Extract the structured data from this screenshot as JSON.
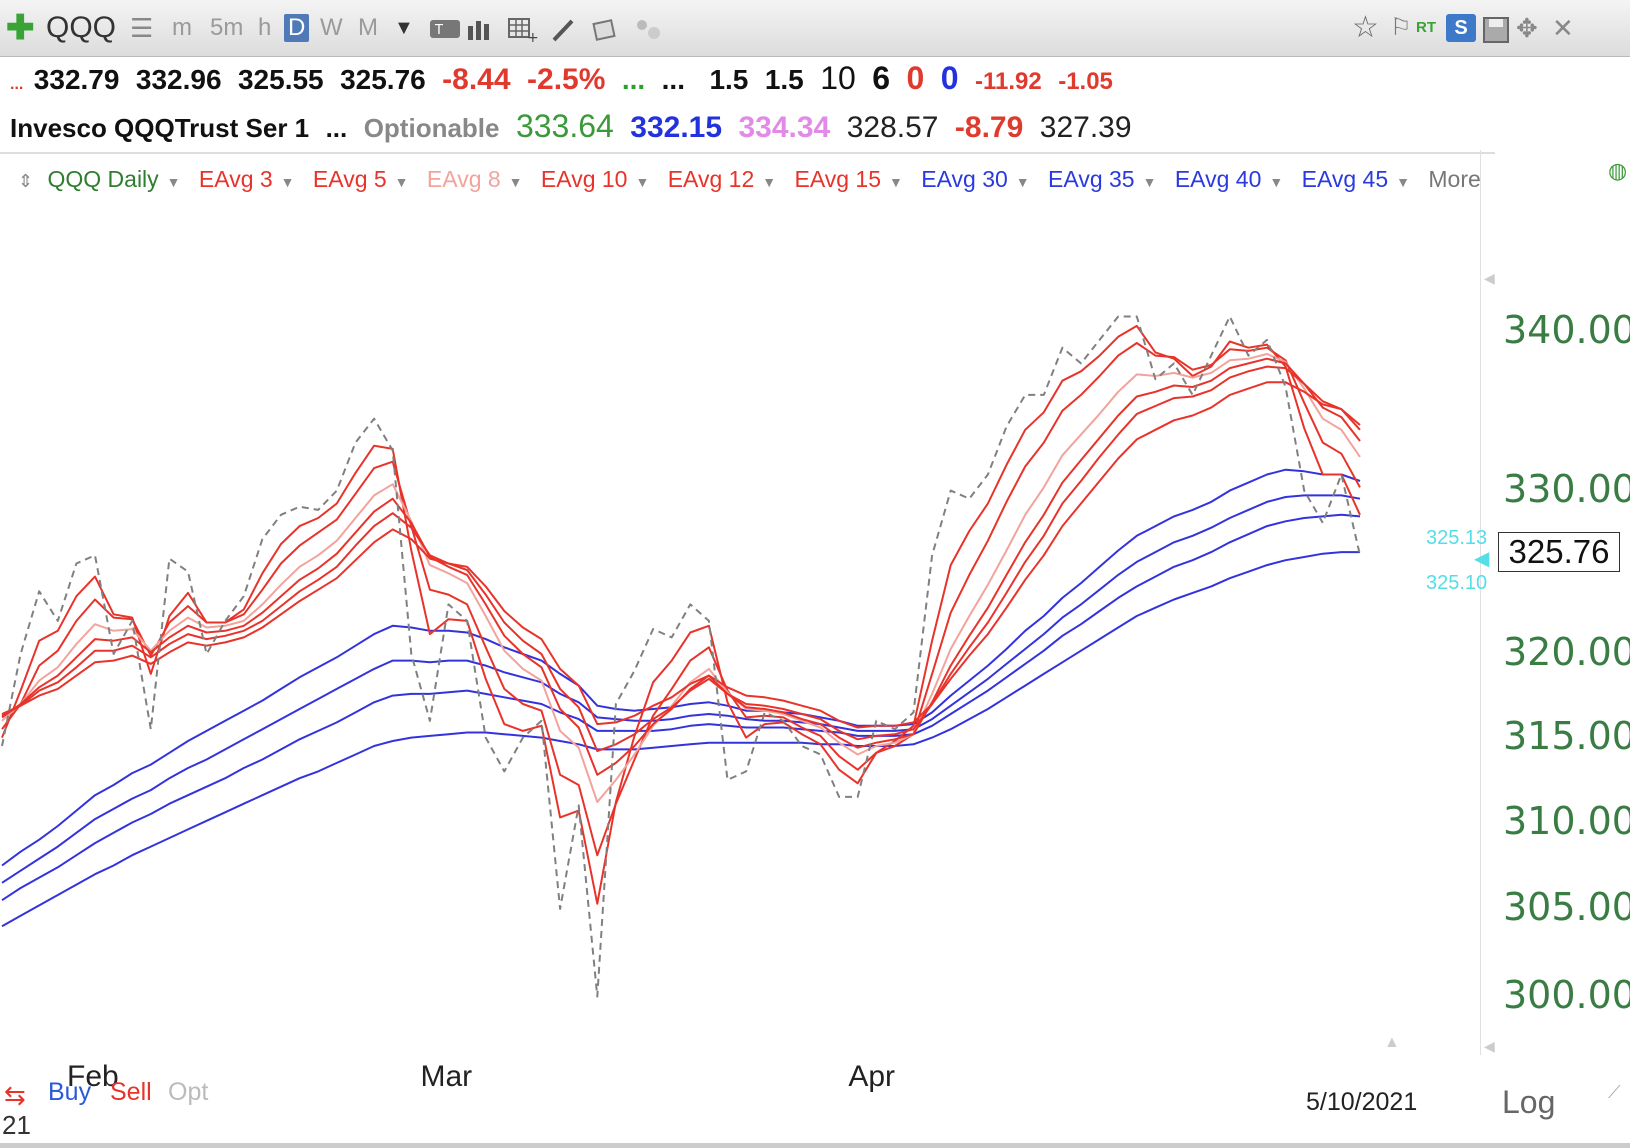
{
  "toolbar": {
    "symbol": "QQQ",
    "timeframes": [
      "m",
      "5m",
      "h",
      "D",
      "W",
      "M"
    ],
    "active_timeframe": "D",
    "right_labels": [
      "RT",
      "S"
    ]
  },
  "quote": {
    "open": "332.79",
    "high": "332.96",
    "low": "325.55",
    "close": "325.76",
    "change": "-8.44",
    "change_pct": "-2.5%",
    "dots1": "...",
    "dots2": "...",
    "dots3": "...",
    "v1": "1.5",
    "v2": "1.5",
    "v3": "10",
    "v4": "6",
    "v5": "0",
    "v6": "0",
    "v7": "-11.92",
    "v8": "-1.05"
  },
  "info": {
    "name": "Invesco QQQTrust Ser 1",
    "dots": "...",
    "optionable": "Optionable",
    "v1": "333.64",
    "v2": "332.15",
    "v3": "334.34",
    "v4": "328.57",
    "v5": "-8.79",
    "v6": "327.39"
  },
  "legend": {
    "chart_label": "QQQ Daily",
    "studies": [
      "EAvg 3",
      "EAvg 5",
      "EAvg 8",
      "EAvg 10",
      "EAvg 12",
      "EAvg 15",
      "EAvg 30",
      "EAvg 35",
      "EAvg 40",
      "EAvg 45"
    ],
    "more": "More"
  },
  "price_tags": {
    "last": "325.76",
    "upper": "325.13",
    "lower": "325.10"
  },
  "footer": {
    "buy": "Buy",
    "sell": "Sell",
    "opt": "Opt",
    "date": "5/10/2021",
    "scale": "Log",
    "corner": "21"
  },
  "colors": {
    "short_ema": "#e8332a",
    "short_ema_light": "#f2a39c",
    "long_ema": "#3333dd",
    "price": "#808080",
    "axis_green": "#3a7d44",
    "cyan": "#55dde8"
  },
  "chart_data": {
    "type": "line",
    "title": "",
    "xlabel": "",
    "ylabel": "",
    "x": [
      "2021-01-25",
      "2021-01-26",
      "2021-01-27",
      "2021-01-28",
      "2021-01-29",
      "2021-02-01",
      "2021-02-02",
      "2021-02-03",
      "2021-02-04",
      "2021-02-05",
      "2021-02-08",
      "2021-02-09",
      "2021-02-10",
      "2021-02-11",
      "2021-02-12",
      "2021-02-16",
      "2021-02-17",
      "2021-02-18",
      "2021-02-19",
      "2021-02-22",
      "2021-02-23",
      "2021-02-24",
      "2021-02-25",
      "2021-02-26",
      "2021-03-01",
      "2021-03-02",
      "2021-03-03",
      "2021-03-04",
      "2021-03-05",
      "2021-03-08",
      "2021-03-09",
      "2021-03-10",
      "2021-03-11",
      "2021-03-12",
      "2021-03-15",
      "2021-03-16",
      "2021-03-17",
      "2021-03-18",
      "2021-03-19",
      "2021-03-22",
      "2021-03-23",
      "2021-03-24",
      "2021-03-25",
      "2021-03-26",
      "2021-03-29",
      "2021-03-30",
      "2021-03-31",
      "2021-04-01",
      "2021-04-05",
      "2021-04-06",
      "2021-04-07",
      "2021-04-08",
      "2021-04-09",
      "2021-04-12",
      "2021-04-13",
      "2021-04-14",
      "2021-04-15",
      "2021-04-16",
      "2021-04-19",
      "2021-04-20",
      "2021-04-21",
      "2021-04-22",
      "2021-04-23",
      "2021-04-26",
      "2021-04-27",
      "2021-04-28",
      "2021-04-29",
      "2021-04-30",
      "2021-05-03",
      "2021-05-04",
      "2021-05-05",
      "2021-05-06",
      "2021-05-07",
      "2021-05-10"
    ],
    "x_ticks": [
      {
        "date": "2021-02-01",
        "label": "Feb"
      },
      {
        "date": "2021-03-01",
        "label": "Mar"
      },
      {
        "date": "2021-04-01",
        "label": "Apr"
      }
    ],
    "ylim": [
      297,
      344
    ],
    "y_ticks": [
      300,
      305,
      310,
      315,
      320,
      330,
      340
    ],
    "y_scale": "log",
    "grid": false,
    "legend_position": "top",
    "price_style": "dashed",
    "price": [
      314.5,
      320.0,
      323.8,
      322.0,
      325.5,
      326.0,
      320.0,
      322.0,
      315.5,
      325.8,
      325.0,
      320.0,
      322.0,
      323.5,
      327.0,
      328.5,
      329.0,
      328.8,
      330.0,
      333.0,
      334.5,
      332.5,
      320.0,
      316.0,
      323.0,
      322.0,
      315.0,
      313.0,
      315.0,
      316.0,
      305.0,
      311.0,
      300.0,
      317.0,
      319.0,
      321.5,
      321.0,
      323.0,
      322.0,
      312.5,
      313.0,
      316.5,
      316.0,
      314.5,
      314.0,
      311.5,
      311.5,
      316.0,
      315.5,
      316.5,
      326.0,
      330.0,
      329.5,
      331.0,
      334.0,
      336.0,
      336.0,
      339.0,
      338.0,
      339.5,
      341.0,
      341.0,
      337.0,
      338.0,
      336.0,
      338.5,
      341.0,
      338.5,
      339.5,
      336.5,
      330.0,
      328.0,
      331.0,
      326.0
    ],
    "series": [
      {
        "name": "EAvg 3",
        "values": [
          315.0,
          317.8,
          320.8,
          321.4,
          323.5,
          324.7,
          322.4,
          322.2,
          318.8,
          322.3,
          323.7,
          321.9,
          321.9,
          322.7,
          324.9,
          326.7,
          327.8,
          328.3,
          329.2,
          331.1,
          332.8,
          332.6,
          326.3,
          321.2,
          322.1,
          322.0,
          318.5,
          315.8,
          315.4,
          315.7,
          310.3,
          310.7,
          305.3,
          311.2,
          315.1,
          318.3,
          319.6,
          321.3,
          321.7,
          317.1,
          315.0,
          315.8,
          315.9,
          315.2,
          314.6,
          313.1,
          312.3,
          314.1,
          314.8,
          315.7,
          320.8,
          325.4,
          327.5,
          329.2,
          331.6,
          333.8,
          334.9,
          336.9,
          337.5,
          338.5,
          339.7,
          340.4,
          338.7,
          338.3,
          337.2,
          337.8,
          339.4,
          339.0,
          339.2,
          337.8,
          333.9,
          331.0,
          331.0,
          328.5
        ]
      },
      {
        "name": "EAvg 5",
        "values": [
          315.5,
          317.0,
          319.3,
          320.2,
          322.0,
          323.3,
          322.2,
          322.1,
          319.9,
          321.9,
          322.9,
          321.9,
          321.9,
          322.4,
          323.9,
          325.5,
          326.6,
          327.4,
          328.2,
          329.8,
          331.4,
          331.8,
          327.8,
          323.9,
          323.6,
          323.0,
          320.4,
          317.9,
          317.0,
          316.6,
          312.8,
          312.2,
          308.1,
          311.1,
          313.7,
          316.3,
          317.9,
          319.6,
          320.4,
          317.8,
          316.2,
          316.3,
          316.2,
          315.6,
          315.1,
          313.9,
          313.1,
          314.1,
          314.5,
          315.2,
          318.8,
          322.5,
          324.8,
          326.9,
          329.3,
          331.5,
          333.0,
          335.0,
          336.0,
          337.2,
          338.5,
          339.3,
          338.5,
          338.4,
          337.6,
          337.9,
          338.9,
          338.8,
          339.0,
          338.2,
          335.5,
          333.0,
          332.3,
          330.2
        ]
      },
      {
        "name": "EAvg 8",
        "values": [
          316.0,
          317.0,
          318.4,
          319.2,
          320.6,
          321.8,
          321.4,
          321.5,
          320.2,
          321.4,
          322.2,
          321.6,
          321.7,
          322.0,
          323.0,
          324.2,
          325.3,
          326.0,
          326.9,
          328.3,
          329.7,
          330.4,
          328.1,
          325.4,
          324.9,
          324.3,
          322.3,
          320.2,
          319.1,
          318.4,
          315.4,
          314.4,
          311.2,
          312.5,
          314.0,
          315.7,
          316.9,
          318.3,
          319.1,
          317.7,
          316.7,
          316.6,
          316.4,
          316.0,
          315.6,
          314.7,
          314.0,
          314.5,
          314.7,
          315.2,
          317.6,
          320.3,
          322.3,
          324.2,
          326.3,
          328.5,
          330.2,
          332.2,
          333.5,
          334.8,
          336.2,
          337.3,
          337.2,
          337.4,
          337.1,
          337.4,
          338.2,
          338.3,
          338.6,
          338.1,
          336.4,
          334.5,
          333.8,
          332.1
        ]
      },
      {
        "name": "EAvg 10",
        "values": [
          316.2,
          317.0,
          318.0,
          318.7,
          319.8,
          320.9,
          320.8,
          321.0,
          320.1,
          321.0,
          321.7,
          321.3,
          321.4,
          321.7,
          322.5,
          323.5,
          324.5,
          325.2,
          326.1,
          327.4,
          328.7,
          329.5,
          328.0,
          325.9,
          325.3,
          324.8,
          323.0,
          321.1,
          320.0,
          319.2,
          316.7,
          315.6,
          312.8,
          313.5,
          314.5,
          315.8,
          316.7,
          317.9,
          318.7,
          317.6,
          316.8,
          316.7,
          316.5,
          316.1,
          315.8,
          315.0,
          314.4,
          314.7,
          314.9,
          315.2,
          317.1,
          319.3,
          321.1,
          322.8,
          324.8,
          326.8,
          328.5,
          330.5,
          331.9,
          333.3,
          334.7,
          335.9,
          336.2,
          336.6,
          336.5,
          336.9,
          337.7,
          338.0,
          338.3,
          338.0,
          336.7,
          335.2,
          334.6,
          333.1
        ]
      },
      {
        "name": "EAvg 12",
        "values": [
          316.3,
          316.9,
          317.8,
          318.3,
          319.2,
          320.2,
          320.2,
          320.5,
          319.8,
          320.6,
          321.2,
          320.9,
          321.1,
          321.4,
          322.0,
          322.9,
          323.8,
          324.5,
          325.3,
          326.6,
          327.8,
          328.6,
          327.7,
          326.0,
          325.5,
          325.1,
          323.6,
          321.9,
          320.8,
          320.0,
          317.9,
          316.8,
          314.2,
          314.6,
          315.2,
          316.1,
          316.8,
          317.8,
          318.5,
          317.6,
          317.0,
          316.9,
          316.7,
          316.4,
          316.1,
          315.4,
          314.9,
          315.1,
          315.2,
          315.5,
          317.0,
          318.8,
          320.4,
          321.9,
          323.7,
          325.6,
          327.2,
          329.2,
          330.6,
          332.1,
          333.5,
          334.8,
          335.3,
          335.8,
          335.9,
          336.3,
          337.1,
          337.5,
          337.8,
          337.7,
          336.7,
          335.6,
          335.1,
          333.8
        ]
      },
      {
        "name": "EAvg 15",
        "values": [
          316.4,
          316.9,
          317.5,
          317.9,
          318.7,
          319.5,
          319.6,
          319.9,
          319.4,
          320.1,
          320.7,
          320.5,
          320.7,
          321.0,
          321.6,
          322.4,
          323.2,
          323.9,
          324.6,
          325.7,
          326.8,
          327.6,
          327.0,
          325.8,
          325.5,
          325.3,
          324.1,
          322.6,
          321.6,
          320.9,
          319.1,
          318.1,
          315.8,
          315.9,
          316.3,
          316.9,
          317.4,
          318.2,
          318.7,
          318.0,
          317.5,
          317.4,
          317.2,
          316.9,
          316.6,
          316.0,
          315.6,
          315.7,
          315.7,
          315.9,
          317.0,
          318.5,
          319.9,
          321.2,
          322.8,
          324.5,
          326.0,
          327.8,
          329.2,
          330.6,
          332.0,
          333.2,
          333.8,
          334.4,
          334.7,
          335.2,
          336.0,
          336.4,
          336.8,
          336.8,
          336.2,
          335.4,
          335.1,
          334.1
        ]
      },
      {
        "name": "EAvg 30",
        "values": [
          307.5,
          308.3,
          309.0,
          309.8,
          310.7,
          311.6,
          312.2,
          312.9,
          313.4,
          314.1,
          314.8,
          315.4,
          316.0,
          316.6,
          317.2,
          317.9,
          318.6,
          319.2,
          319.8,
          320.5,
          321.2,
          321.7,
          321.6,
          321.4,
          321.4,
          321.3,
          320.9,
          320.4,
          320.0,
          319.6,
          318.8,
          318.1,
          316.9,
          316.7,
          316.6,
          316.7,
          316.8,
          317.0,
          317.1,
          316.9,
          316.6,
          316.6,
          316.5,
          316.4,
          316.2,
          316.0,
          315.7,
          315.7,
          315.7,
          315.8,
          316.5,
          317.5,
          318.4,
          319.3,
          320.3,
          321.4,
          322.3,
          323.4,
          324.3,
          325.3,
          326.3,
          327.2,
          327.8,
          328.4,
          328.8,
          329.3,
          330.0,
          330.5,
          331.0,
          331.3,
          331.2,
          331.0,
          331.0,
          330.6
        ]
      },
      {
        "name": "EAvg 35",
        "values": [
          306.5,
          307.2,
          307.9,
          308.6,
          309.4,
          310.2,
          310.8,
          311.4,
          311.9,
          312.6,
          313.2,
          313.7,
          314.3,
          314.9,
          315.5,
          316.1,
          316.7,
          317.3,
          317.9,
          318.5,
          319.1,
          319.6,
          319.6,
          319.5,
          319.6,
          319.6,
          319.3,
          318.9,
          318.6,
          318.3,
          317.6,
          317.1,
          316.2,
          316.1,
          316.0,
          316.0,
          316.1,
          316.3,
          316.4,
          316.3,
          316.1,
          316.0,
          316.0,
          315.9,
          315.8,
          315.6,
          315.4,
          315.4,
          315.4,
          315.5,
          316.1,
          316.9,
          317.7,
          318.5,
          319.4,
          320.3,
          321.2,
          322.2,
          323.0,
          323.9,
          324.8,
          325.6,
          326.2,
          326.8,
          327.2,
          327.7,
          328.3,
          328.8,
          329.3,
          329.6,
          329.7,
          329.7,
          329.7,
          329.5
        ]
      },
      {
        "name": "EAvg 40",
        "values": [
          305.5,
          306.2,
          306.8,
          307.4,
          308.1,
          308.8,
          309.4,
          310.0,
          310.5,
          311.1,
          311.6,
          312.1,
          312.6,
          313.2,
          313.7,
          314.3,
          314.9,
          315.4,
          315.9,
          316.5,
          317.1,
          317.5,
          317.6,
          317.6,
          317.7,
          317.8,
          317.6,
          317.4,
          317.2,
          317.0,
          316.5,
          316.1,
          315.4,
          315.4,
          315.4,
          315.4,
          315.5,
          315.7,
          315.8,
          315.7,
          315.6,
          315.6,
          315.6,
          315.5,
          315.4,
          315.3,
          315.1,
          315.1,
          315.1,
          315.2,
          315.7,
          316.4,
          317.1,
          317.8,
          318.6,
          319.4,
          320.2,
          321.1,
          321.8,
          322.6,
          323.4,
          324.1,
          324.7,
          325.3,
          325.7,
          326.2,
          326.8,
          327.3,
          327.8,
          328.1,
          328.3,
          328.4,
          328.5,
          328.4
        ]
      },
      {
        "name": "EAvg 45",
        "values": [
          304.0,
          304.6,
          305.2,
          305.8,
          306.4,
          307.0,
          307.5,
          308.1,
          308.6,
          309.1,
          309.6,
          310.1,
          310.6,
          311.1,
          311.6,
          312.1,
          312.6,
          313.0,
          313.5,
          314.0,
          314.5,
          314.8,
          315.0,
          315.1,
          315.2,
          315.3,
          315.3,
          315.2,
          315.1,
          315.0,
          314.8,
          314.6,
          314.3,
          314.3,
          314.3,
          314.4,
          314.5,
          314.6,
          314.7,
          314.7,
          314.7,
          314.7,
          314.7,
          314.7,
          314.6,
          314.6,
          314.5,
          314.5,
          314.5,
          314.6,
          315.0,
          315.5,
          316.1,
          316.7,
          317.4,
          318.1,
          318.8,
          319.5,
          320.2,
          320.9,
          321.6,
          322.3,
          322.8,
          323.3,
          323.7,
          324.1,
          324.6,
          325.0,
          325.4,
          325.7,
          325.9,
          326.1,
          326.2,
          326.2
        ]
      }
    ]
  }
}
